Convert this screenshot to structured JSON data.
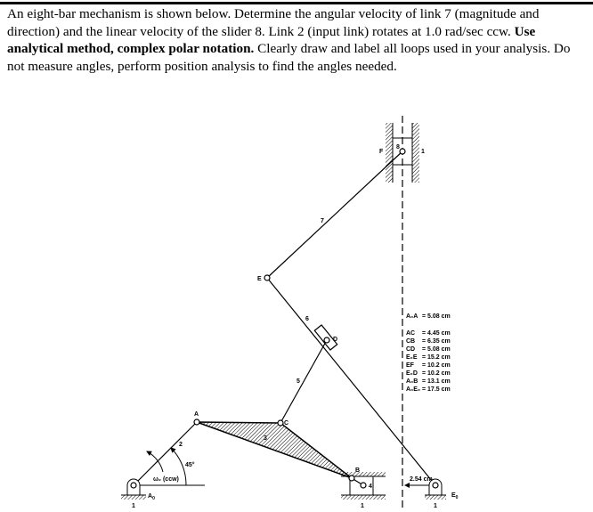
{
  "problem": {
    "text_1": "An eight-bar mechanism is shown below. Determine the angular velocity of link 7 (magnitude and direction) and the linear velocity of the slider 8. Link 2 (input link) rotates at 1.0 rad/sec ccw. ",
    "bold_1": "Use analytical method, complex polar notation.",
    "text_2": " Clearly draw and label all loops used in your analysis. Do not measure angles, perform position analysis to find the angles needed."
  },
  "diagram": {
    "points": {
      "A0": "A",
      "A0_sub": "0",
      "A": "A",
      "B": "B",
      "C": "C",
      "D": "D",
      "E": "E",
      "F": "F",
      "E0": "E",
      "E0_sub": "0"
    },
    "links": {
      "l2": "2",
      "l3": "3",
      "l4": "4",
      "l5": "5",
      "l6": "6",
      "l7": "7",
      "l8": "8",
      "ground_a": "1",
      "ground_b": "1",
      "ground_c": "1",
      "ground_f": "1"
    },
    "angle": "45°",
    "omega": "ω₂ (ccw)",
    "offset": "2.54 cm",
    "dimensions": [
      {
        "label": "A₀A",
        "value": "= 5.08 cm"
      },
      {
        "label": "AC",
        "value": "= 4.45 cm"
      },
      {
        "label": "CB",
        "value": "= 6.35 cm"
      },
      {
        "label": "CD",
        "value": "= 5.08 cm"
      },
      {
        "label": "E₀E",
        "value": "= 15.2 cm"
      },
      {
        "label": "EF",
        "value": "= 10.2 cm"
      },
      {
        "label": "E₀D",
        "value": "= 10.2 cm"
      },
      {
        "label": "A₀B",
        "value": "= 13.1 cm"
      },
      {
        "label": "A₀E₀",
        "value": "= 17.5 cm"
      }
    ]
  }
}
